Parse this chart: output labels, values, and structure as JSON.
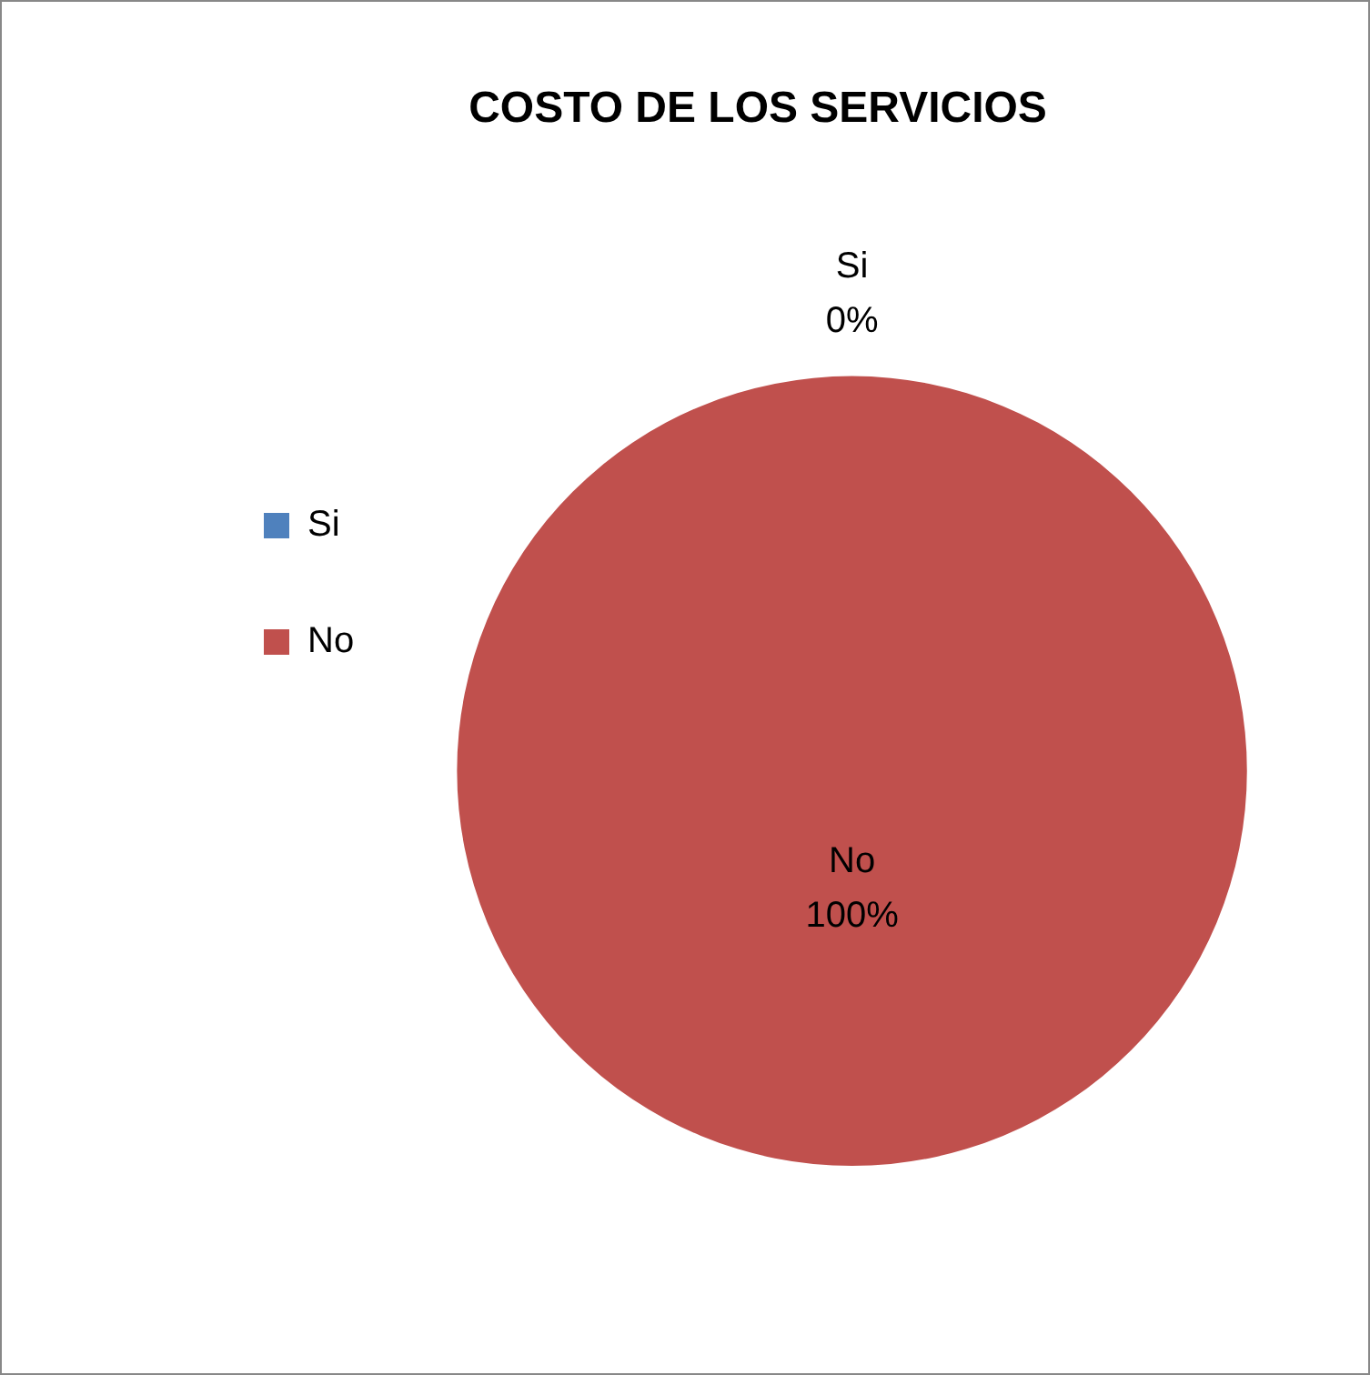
{
  "chart_data": {
    "type": "pie",
    "title": "COSTO DE LOS SERVICIOS",
    "categories": [
      "Si",
      "No"
    ],
    "values": [
      0,
      100
    ],
    "colors": [
      "#4f81bd",
      "#c0504d"
    ],
    "value_labels": [
      "0%",
      "100%"
    ],
    "legend": "left"
  }
}
